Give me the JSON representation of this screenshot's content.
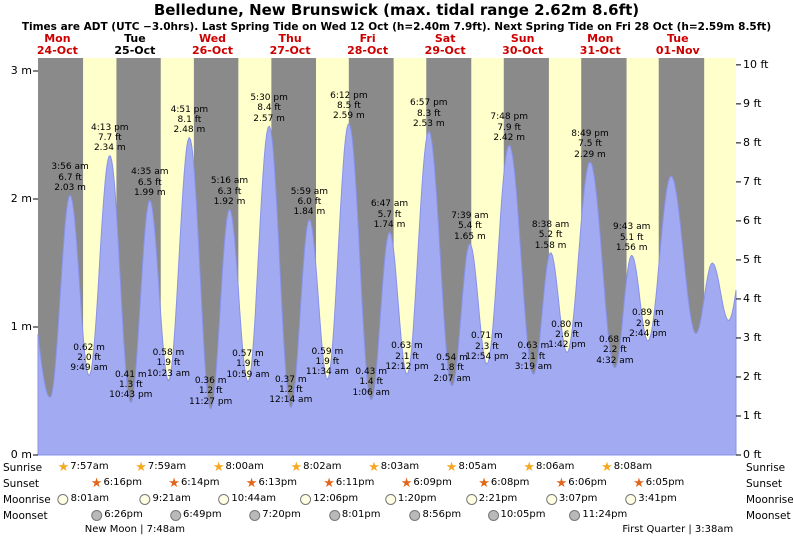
{
  "title": "Belledune, New Brunswick (max. tidal range 2.62m 8.6ft)",
  "subtitle": "Times are ADT (UTC −3.0hrs). Last Spring Tide on Wed 12 Oct (h=2.40m 7.9ft). Next Spring Tide on Fri 28 Oct (h=2.59m 8.5ft)",
  "colors": {
    "day_band": "#ffffcc",
    "night_band": "#8a8a8a",
    "tide_fill": "#a2aaf2",
    "tide_stroke": "#8892e8",
    "date_red": "#cc0000",
    "date_black": "#000000",
    "sunrise_icon": "#f6a821",
    "sunset_icon": "#e2661a",
    "moonrise_icon": "#ffffe4",
    "moonset_icon": "#b9b9b9"
  },
  "axis": {
    "left_ticks": [
      "3 m",
      "2 m",
      "1 m",
      "0 m"
    ],
    "right_ticks": [
      "10 ft",
      "9 ft",
      "8 ft",
      "7 ft",
      "6 ft",
      "5 ft",
      "4 ft",
      "3 ft",
      "2 ft",
      "1 ft",
      "0 ft"
    ]
  },
  "astro_rows": [
    {
      "key": "sunrise",
      "label": "Sunrise"
    },
    {
      "key": "sunset",
      "label": "Sunset"
    },
    {
      "key": "moonrise",
      "label": "Moonrise"
    },
    {
      "key": "moonset",
      "label": "Moonset"
    }
  ],
  "chart_data": {
    "type": "area",
    "title": "Belledune, New Brunswick (max. tidal range 2.62m 8.6ft)",
    "ylabel_left": "m",
    "ylabel_right": "ft",
    "ylim_m": [
      0,
      3.1
    ],
    "grid": false,
    "days": [
      {
        "weekday": "Mon",
        "date": "24-Oct",
        "label_color": "#cc0000",
        "sunrise": "7:57am",
        "sunset": "6:16pm",
        "moonrise": "8:01am",
        "moonset": "6:26pm"
      },
      {
        "weekday": "Tue",
        "date": "25-Oct",
        "label_color": "#000000",
        "sunrise": "7:59am",
        "sunset": "6:14pm",
        "moonrise": "9:21am",
        "moonset": "6:49pm"
      },
      {
        "weekday": "Wed",
        "date": "26-Oct",
        "label_color": "#cc0000",
        "sunrise": "8:00am",
        "sunset": "6:13pm",
        "moonrise": "10:44am",
        "moonset": "7:20pm"
      },
      {
        "weekday": "Thu",
        "date": "27-Oct",
        "label_color": "#cc0000",
        "sunrise": "8:02am",
        "sunset": "6:11pm",
        "moonrise": "12:06pm",
        "moonset": "8:01pm"
      },
      {
        "weekday": "Fri",
        "date": "28-Oct",
        "label_color": "#cc0000",
        "sunrise": "8:03am",
        "sunset": "6:09pm",
        "moonrise": "1:20pm",
        "moonset": "8:56pm"
      },
      {
        "weekday": "Sat",
        "date": "29-Oct",
        "label_color": "#cc0000",
        "sunrise": "8:05am",
        "sunset": "6:08pm",
        "moonrise": "2:21pm",
        "moonset": "10:05pm"
      },
      {
        "weekday": "Sun",
        "date": "30-Oct",
        "label_color": "#cc0000",
        "sunrise": "8:06am",
        "sunset": "6:06pm",
        "moonrise": "3:07pm",
        "moonset": "11:24pm"
      },
      {
        "weekday": "Mon",
        "date": "31-Oct",
        "label_color": "#cc0000",
        "sunrise": "8:08am",
        "sunset": "6:05pm",
        "moonrise": "3:41pm",
        "moonset": null
      },
      {
        "weekday": "Tue",
        "date": "01-Nov",
        "label_color": "#cc0000",
        "sunrise": null,
        "sunset": null,
        "moonrise": null,
        "moonset": null
      }
    ],
    "tides": [
      {
        "day": 0,
        "type": "high",
        "time": "3:56 am",
        "ft": "6.7 ft",
        "m": "2.03 m",
        "height_m": 2.03
      },
      {
        "day": 0,
        "type": "low",
        "time": "9:49 am",
        "ft": "2.0 ft",
        "m": "0.62 m",
        "height_m": 0.62
      },
      {
        "day": 0,
        "type": "high",
        "time": "4:13 pm",
        "ft": "7.7 ft",
        "m": "2.34 m",
        "height_m": 2.34
      },
      {
        "day": 0,
        "type": "low",
        "time": "10:43 pm",
        "ft": "1.3 ft",
        "m": "0.41 m",
        "height_m": 0.41
      },
      {
        "day": 1,
        "type": "high",
        "time": "4:35 am",
        "ft": "6.5 ft",
        "m": "1.99 m",
        "height_m": 1.99
      },
      {
        "day": 1,
        "type": "low",
        "time": "10:23 am",
        "ft": "1.9 ft",
        "m": "0.58 m",
        "height_m": 0.58
      },
      {
        "day": 1,
        "type": "high",
        "time": "4:51 pm",
        "ft": "8.1 ft",
        "m": "2.48 m",
        "height_m": 2.48
      },
      {
        "day": 1,
        "type": "low",
        "time": "11:27 pm",
        "ft": "1.2 ft",
        "m": "0.36 m",
        "height_m": 0.36
      },
      {
        "day": 2,
        "type": "high",
        "time": "5:16 am",
        "ft": "6.3 ft",
        "m": "1.92 m",
        "height_m": 1.92
      },
      {
        "day": 2,
        "type": "low",
        "time": "10:59 am",
        "ft": "1.9 ft",
        "m": "0.57 m",
        "height_m": 0.57
      },
      {
        "day": 2,
        "type": "high",
        "time": "5:30 pm",
        "ft": "8.4 ft",
        "m": "2.57 m",
        "height_m": 2.57
      },
      {
        "day": 3,
        "type": "low",
        "time": "12:14 am",
        "ft": "1.2 ft",
        "m": "0.37 m",
        "height_m": 0.37
      },
      {
        "day": 3,
        "type": "high",
        "time": "5:59 am",
        "ft": "6.0 ft",
        "m": "1.84 m",
        "height_m": 1.84
      },
      {
        "day": 3,
        "type": "low",
        "time": "11:34 am",
        "ft": "1.9 ft",
        "m": "0.59 m",
        "height_m": 0.59
      },
      {
        "day": 3,
        "type": "high",
        "time": "6:12 pm",
        "ft": "8.5 ft",
        "m": "2.59 m",
        "height_m": 2.59
      },
      {
        "day": 4,
        "type": "low",
        "time": "1:06 am",
        "ft": "1.4 ft",
        "m": "0.43 m",
        "height_m": 0.43
      },
      {
        "day": 4,
        "type": "high",
        "time": "6:47 am",
        "ft": "5.7 ft",
        "m": "1.74 m",
        "height_m": 1.74
      },
      {
        "day": 4,
        "type": "low",
        "time": "12:12 pm",
        "ft": "2.1 ft",
        "m": "0.63 m",
        "height_m": 0.63
      },
      {
        "day": 4,
        "type": "high",
        "time": "6:57 pm",
        "ft": "8.3 ft",
        "m": "2.53 m",
        "height_m": 2.53
      },
      {
        "day": 5,
        "type": "low",
        "time": "2:07 am",
        "ft": "1.8 ft",
        "m": "0.54 m",
        "height_m": 0.54
      },
      {
        "day": 5,
        "type": "high",
        "time": "7:39 am",
        "ft": "5.4 ft",
        "m": "1.65 m",
        "height_m": 1.65
      },
      {
        "day": 5,
        "type": "low",
        "time": "12:54 pm",
        "ft": "2.3 ft",
        "m": "0.71 m",
        "height_m": 0.71
      },
      {
        "day": 5,
        "type": "high",
        "time": "7:48 pm",
        "ft": "7.9 ft",
        "m": "2.42 m",
        "height_m": 2.42
      },
      {
        "day": 6,
        "type": "low",
        "time": "3:19 am",
        "ft": "2.1 ft",
        "m": "0.63 m",
        "height_m": 0.63
      },
      {
        "day": 6,
        "type": "high",
        "time": "8:38 am",
        "ft": "5.2 ft",
        "m": "1.58 m",
        "height_m": 1.58
      },
      {
        "day": 6,
        "type": "low",
        "time": "1:42 pm",
        "ft": "2.6 ft",
        "m": "0.80 m",
        "height_m": 0.8
      },
      {
        "day": 6,
        "type": "high",
        "time": "8:49 pm",
        "ft": "7.5 ft",
        "m": "2.29 m",
        "height_m": 2.29
      },
      {
        "day": 7,
        "type": "low",
        "time": "4:32 am",
        "ft": "2.2 ft",
        "m": "0.68 m",
        "height_m": 0.68
      },
      {
        "day": 7,
        "type": "high",
        "time": "9:43 am",
        "ft": "5.1 ft",
        "m": "1.56 m",
        "height_m": 1.56
      },
      {
        "day": 7,
        "type": "low",
        "time": "2:44 pm",
        "ft": "2.9 ft",
        "m": "0.89 m",
        "height_m": 0.89
      }
    ],
    "moon_phases": [
      {
        "label": "New Moon | 7:48am",
        "day": 1
      },
      {
        "label": "First Quarter | 3:38am",
        "day": 8
      }
    ]
  }
}
